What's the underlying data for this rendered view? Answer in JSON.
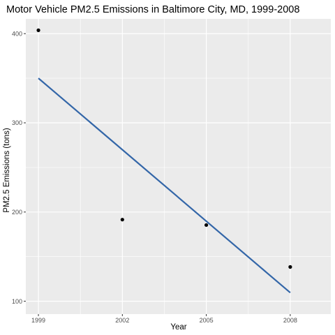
{
  "chart_data": {
    "type": "scatter",
    "title": "Motor Vehicle PM2.5 Emissions in Baltimore City, MD, 1999-2008",
    "xlabel": "Year",
    "ylabel": "PM2.5 Emissions (tons)",
    "x_ticks": [
      "1999",
      "2002",
      "2005",
      "2008"
    ],
    "y_ticks": [
      "100",
      "200",
      "300",
      "400"
    ],
    "xlim": [
      1998.55,
      2009.45
    ],
    "ylim": [
      85.6,
      416.6
    ],
    "grid": true,
    "legend": "none",
    "series": [
      {
        "type": "scatter",
        "x": [
          1999,
          2002,
          2005,
          2008
        ],
        "y": [
          403.8,
          191.5,
          185.4,
          138.4
        ],
        "color": "#000000"
      },
      {
        "type": "line",
        "x": [
          1999,
          2008
        ],
        "y": [
          350.0,
          109.6
        ],
        "color": "#3366a8"
      }
    ],
    "colors": {
      "panel_background": "#ebebeb",
      "grid": "#ffffff",
      "point": "#000000",
      "trend": "#3366a8"
    }
  }
}
